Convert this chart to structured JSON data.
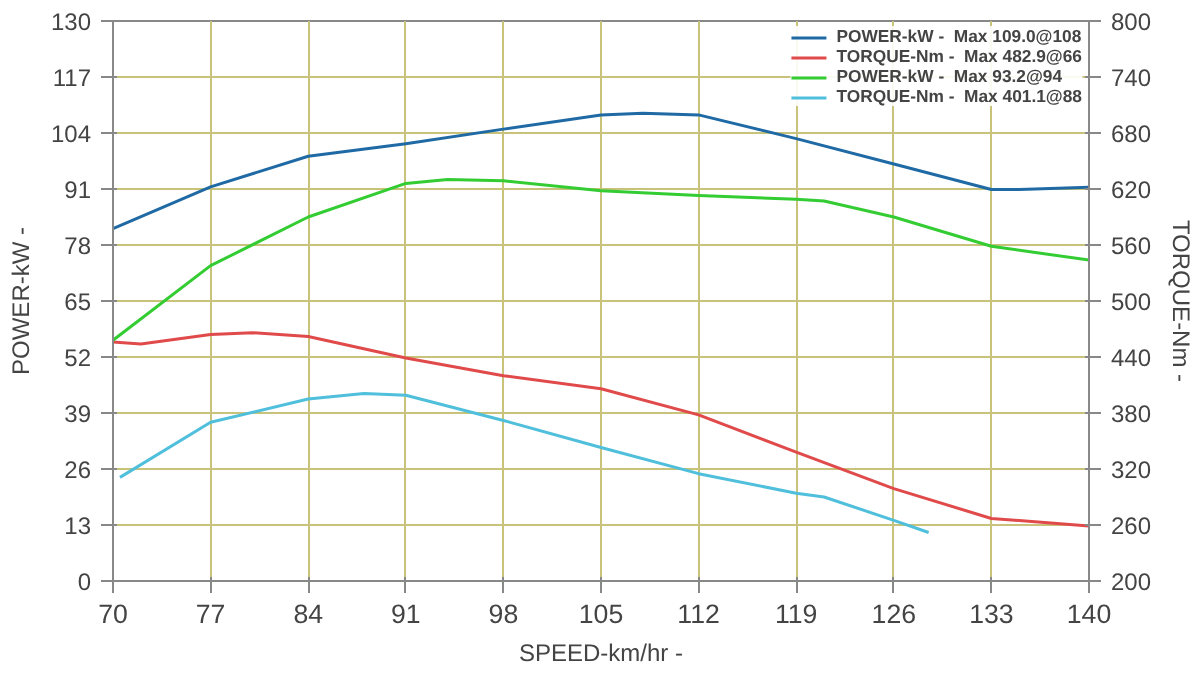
{
  "chart_data": {
    "type": "line",
    "xlabel": "SPEED-km/hr -",
    "ylabel": "POWER-kW -",
    "y2label": "TORQUE-Nm -",
    "xlim": [
      70,
      140
    ],
    "xticks": [
      70,
      77,
      84,
      91,
      98,
      105,
      112,
      119,
      126,
      133,
      140
    ],
    "ylim": [
      0,
      130
    ],
    "yticks": [
      0,
      13,
      26,
      39,
      52,
      65,
      78,
      91,
      104,
      117,
      130
    ],
    "y2lim": [
      200,
      800
    ],
    "y2ticks": [
      200,
      260,
      320,
      380,
      440,
      500,
      560,
      620,
      680,
      740,
      800
    ],
    "grid": true,
    "legend": "top right",
    "marker": "none",
    "line_style": "solid",
    "series": [
      {
        "name": "POWER-kW -  Max 109.0@108",
        "color": "#1f6aa5",
        "x": [
          70,
          77,
          84,
          91,
          98,
          105,
          108,
          112,
          119,
          126,
          133,
          135,
          140
        ],
        "values": [
          81.8,
          91.5,
          98.6,
          101.5,
          104.9,
          108.2,
          108.6,
          108.2,
          102.7,
          96.8,
          90.9,
          90.9,
          91.4
        ]
      },
      {
        "name": "TORQUE-Nm -  Max 482.9@66",
        "color": "#e04a4a",
        "axis": "y2",
        "x": [
          70,
          72,
          77,
          80,
          84,
          91,
          98,
          105,
          112,
          119,
          126,
          133,
          140
        ],
        "values": [
          456,
          454,
          464,
          466,
          462,
          439,
          420,
          406,
          378,
          338,
          299,
          267,
          259
        ]
      },
      {
        "name": "POWER-kW -  Max 93.2@94",
        "color": "#33cc33",
        "x": [
          70,
          77,
          84,
          91,
          94,
          98,
          105,
          112,
          119,
          121,
          126,
          133,
          140
        ],
        "values": [
          55.9,
          73.2,
          84.5,
          92.3,
          93.2,
          92.9,
          90.6,
          89.5,
          88.6,
          88.2,
          84.5,
          77.7,
          74.5
        ]
      },
      {
        "name": "TORQUE-Nm -  Max 401.1@88",
        "color": "#4fbfdc",
        "axis": "y2",
        "x": [
          70.5,
          77,
          84,
          88,
          91,
          98,
          105,
          112,
          119,
          121,
          126,
          128.5
        ],
        "values": [
          311,
          370,
          395,
          401,
          399,
          372,
          343,
          315,
          294,
          290,
          265,
          252
        ]
      }
    ]
  }
}
